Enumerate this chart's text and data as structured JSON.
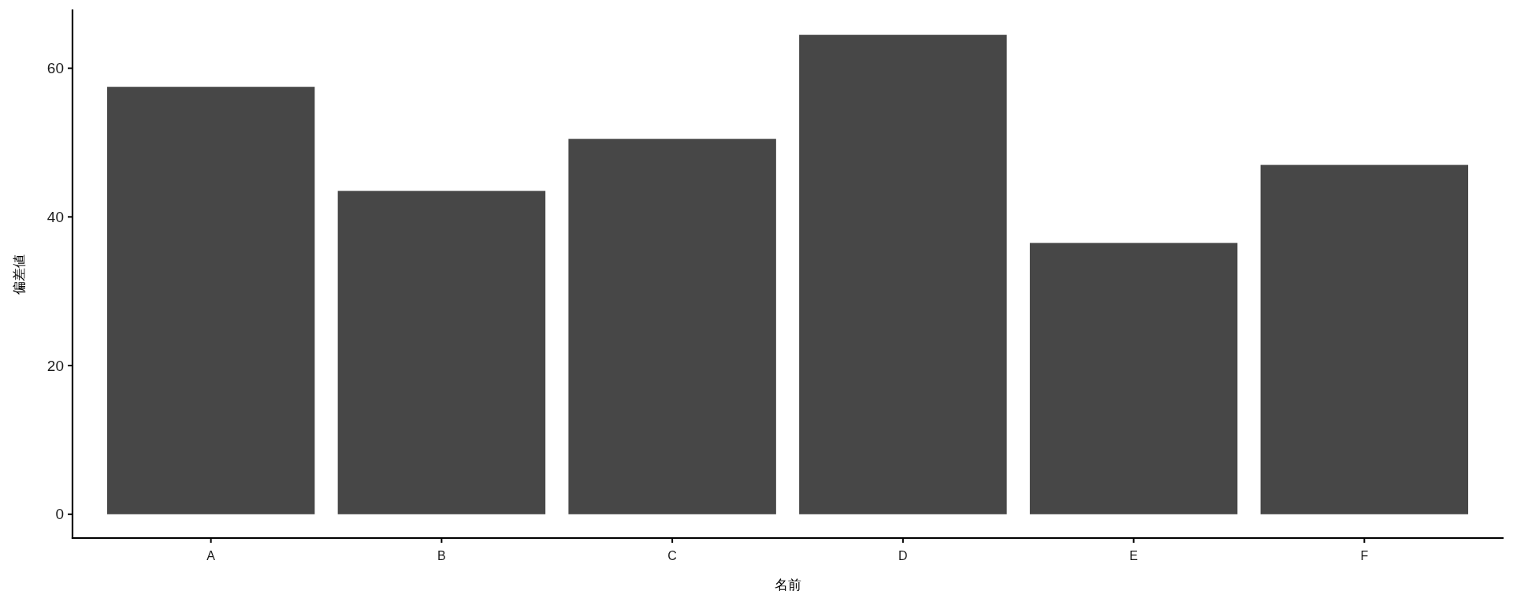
{
  "chart_data": {
    "type": "bar",
    "xlabel": "名前",
    "ylabel": "偏差値",
    "categories": [
      "A",
      "B",
      "C",
      "D",
      "E",
      "F"
    ],
    "values": [
      57.5,
      43.5,
      50.5,
      64.5,
      36.5,
      47
    ],
    "color": "#474747",
    "ylim": [
      -3.2,
      67.8
    ],
    "yticks": [
      0,
      20,
      40,
      60
    ]
  }
}
